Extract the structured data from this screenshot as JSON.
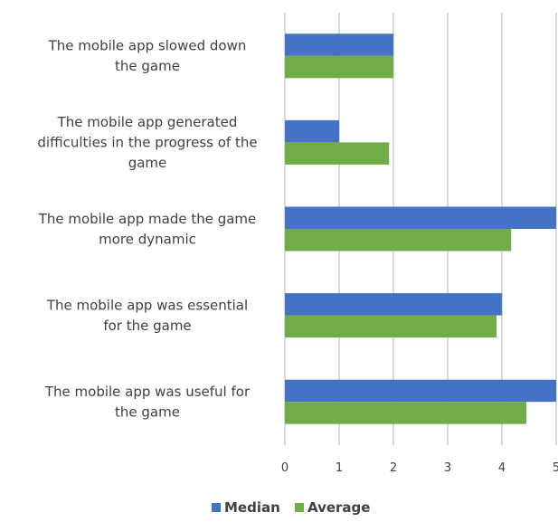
{
  "chart_data": {
    "type": "bar",
    "orientation": "horizontal",
    "title": "",
    "xlabel": "",
    "ylabel": "",
    "categories": [
      "The mobile app slowed down the game",
      "The mobile app generated difficulties in the progress of the game",
      "The mobile app made the game more dynamic",
      "The mobile app was essential for the game",
      "The mobile app was useful for the game"
    ],
    "series": [
      {
        "name": "Median",
        "color": "#4472C4",
        "values": [
          2,
          1,
          5,
          4,
          5
        ]
      },
      {
        "name": "Average",
        "color": "#70AD47",
        "values": [
          2.0,
          1.92,
          4.17,
          3.9,
          4.45
        ]
      }
    ],
    "xlim": [
      0,
      5
    ],
    "xticks": [
      "0",
      "1",
      "2",
      "3",
      "4",
      "5"
    ],
    "grid": "vertical",
    "legend": "bottom"
  }
}
